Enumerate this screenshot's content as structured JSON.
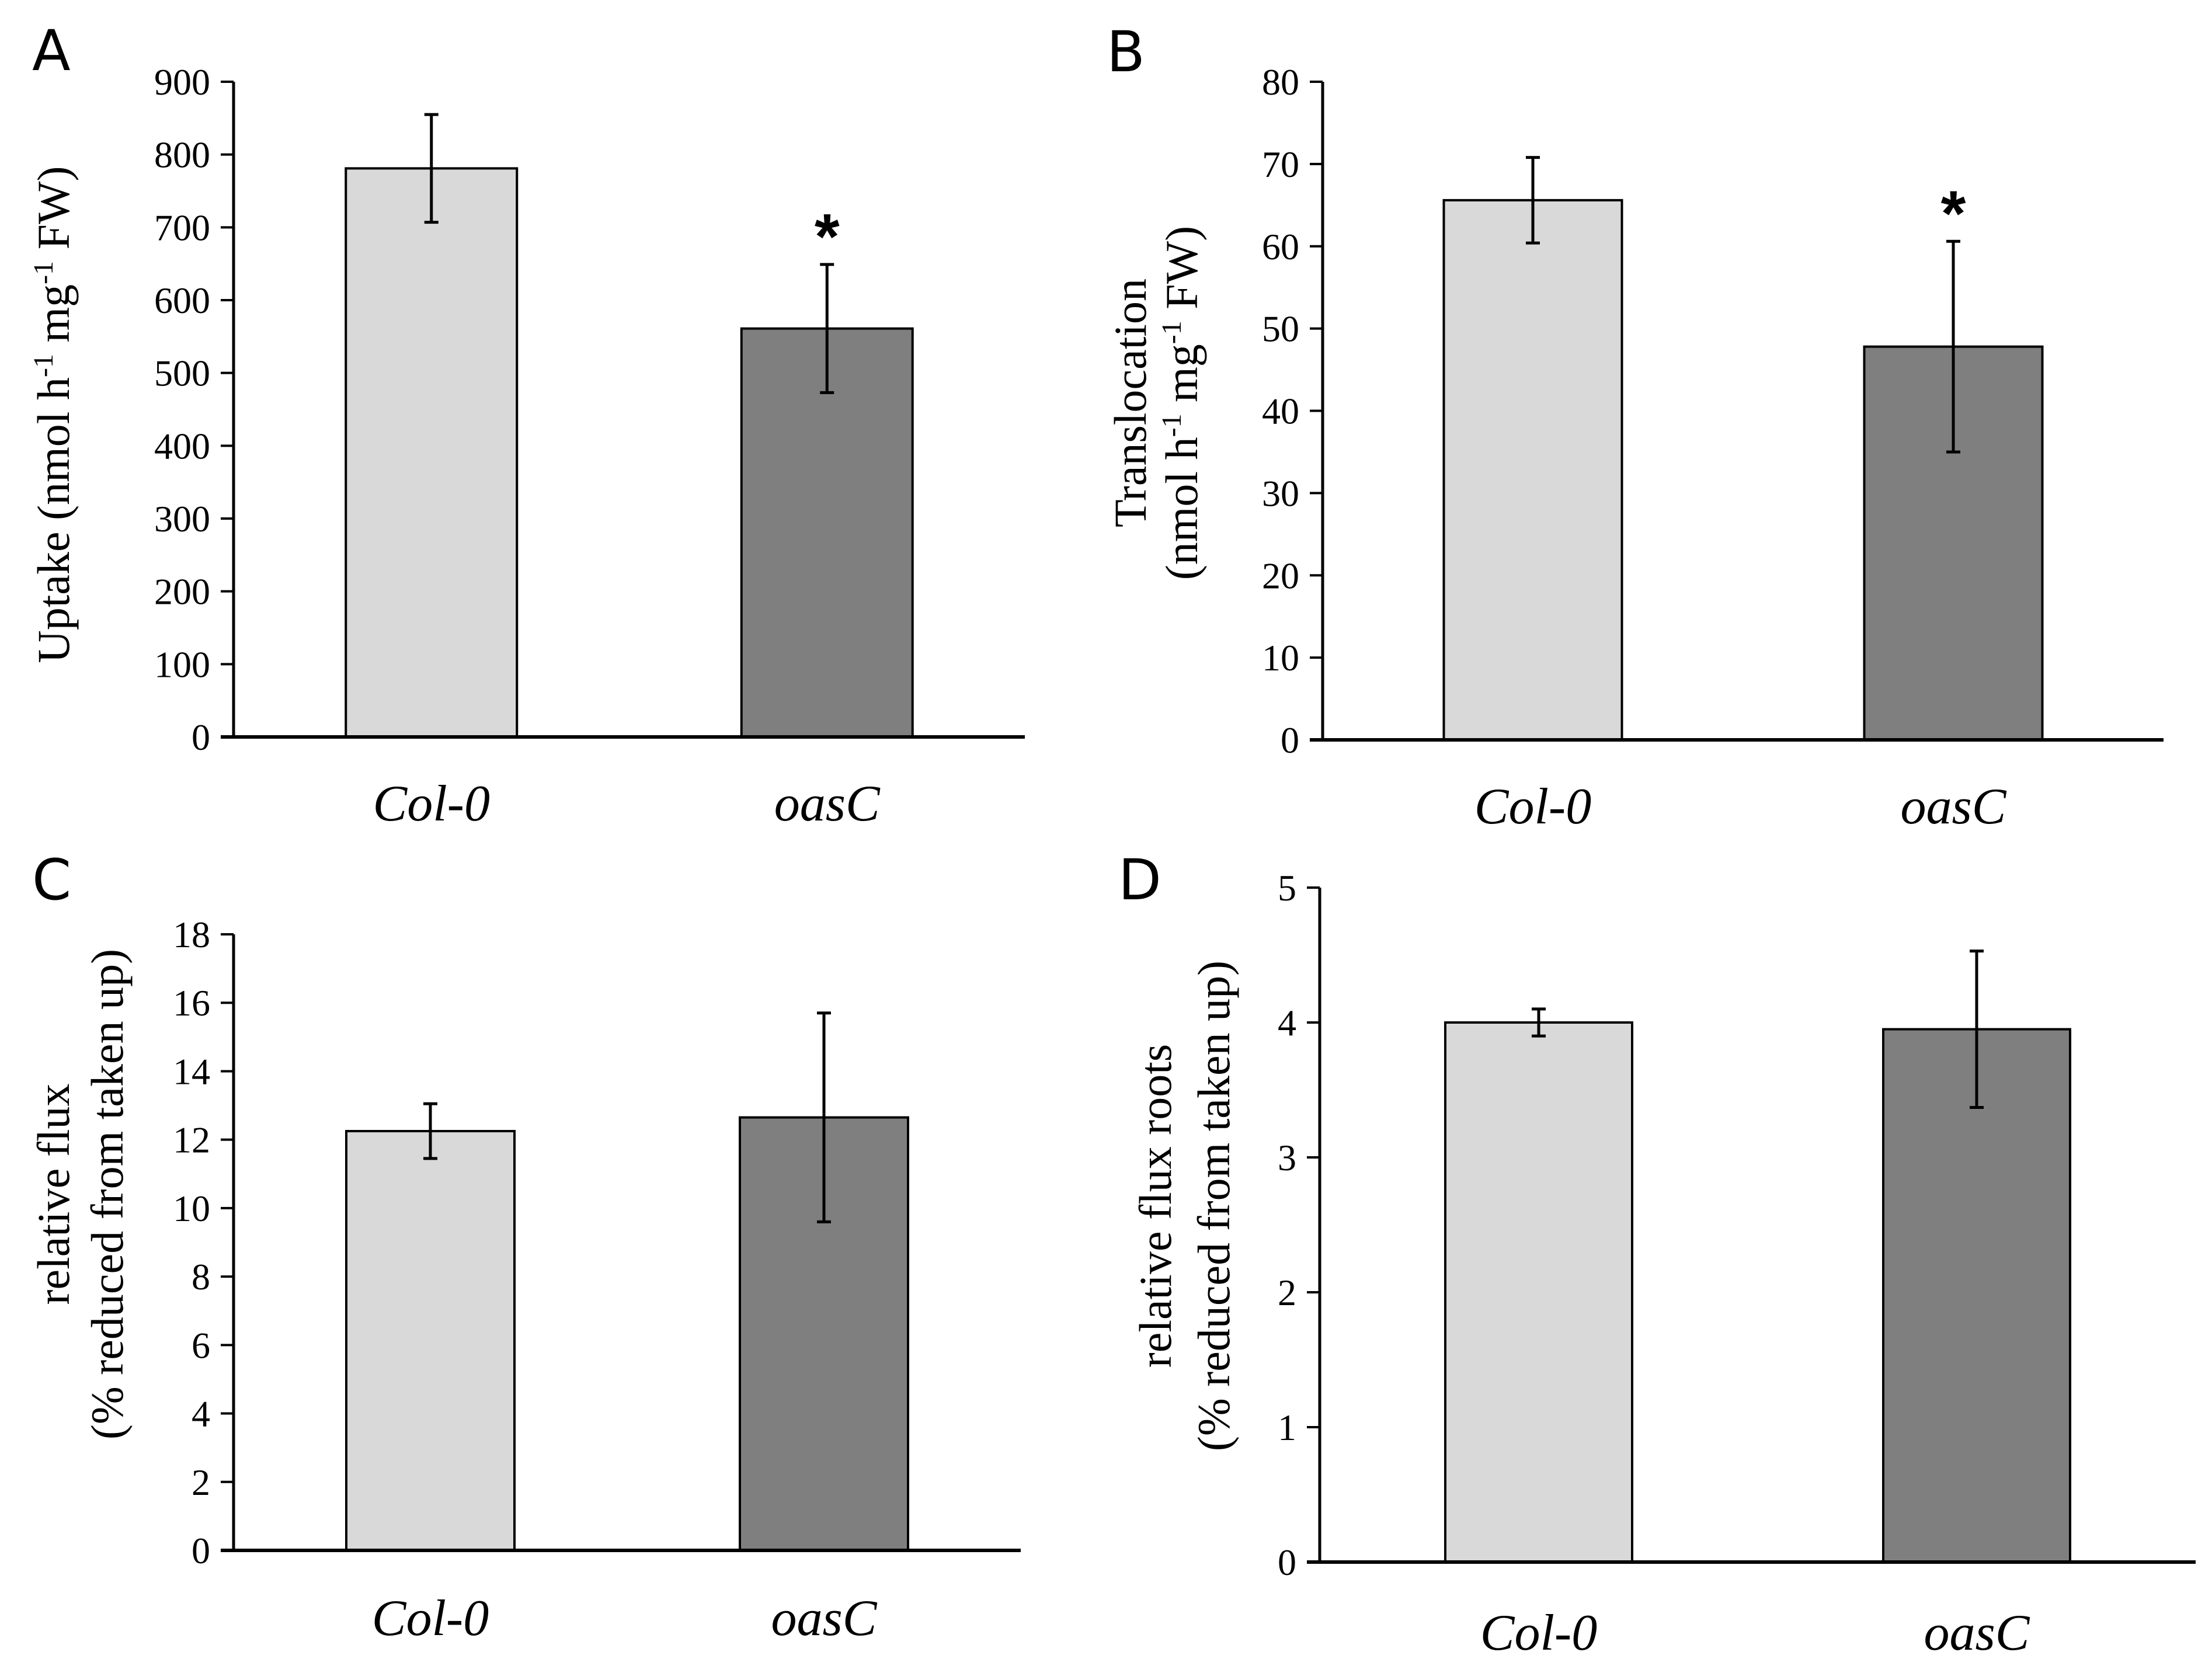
{
  "chart_data": [
    {
      "panel": "A",
      "type": "bar",
      "categories": [
        "Col-0",
        "oasC"
      ],
      "values": [
        781,
        561
      ],
      "errors": [
        74,
        88
      ],
      "colors": [
        "#d9d9d9",
        "#7f7f7f"
      ],
      "annotations": [
        "",
        "*"
      ],
      "ylabel": {
        "main": "Uptake (nmol h",
        "sup1": "-1",
        "mid": " mg",
        "sup2": "-1",
        "end": " FW)"
      },
      "ylim": [
        0,
        900
      ],
      "ticks": [
        0,
        100,
        200,
        300,
        400,
        500,
        600,
        700,
        800,
        900
      ],
      "tick_labels": [
        "0",
        "100",
        "200",
        "300",
        "400",
        "500",
        "600",
        "700",
        "800",
        "900"
      ]
    },
    {
      "panel": "B",
      "type": "bar",
      "categories": [
        "Col-0",
        "oasC"
      ],
      "values": [
        65.6,
        47.8
      ],
      "errors": [
        5.2,
        12.8
      ],
      "colors": [
        "#d9d9d9",
        "#7f7f7f"
      ],
      "annotations": [
        "",
        "*"
      ],
      "ylabel_line1": "Translocation",
      "ylabel": {
        "main": "(nmol h",
        "sup1": "-1",
        "mid": " mg",
        "sup2": "-1",
        "end": "  FW)"
      },
      "ylim": [
        0,
        80
      ],
      "ticks": [
        0,
        10,
        20,
        30,
        40,
        50,
        60,
        70,
        80
      ],
      "tick_labels": [
        "0",
        "10",
        "20",
        "30",
        "40",
        "50",
        "60",
        "70",
        "80"
      ]
    },
    {
      "panel": "C",
      "type": "bar",
      "categories": [
        "Col-0",
        "oasC"
      ],
      "values": [
        12.25,
        12.65
      ],
      "errors": [
        0.8,
        3.05
      ],
      "colors": [
        "#d9d9d9",
        "#7f7f7f"
      ],
      "annotations": [
        "",
        ""
      ],
      "ylabel_line1": "relative flux",
      "ylabel_line2": "(% reduced from taken up)",
      "ylim": [
        0,
        18
      ],
      "ticks": [
        0,
        2,
        4,
        6,
        8,
        10,
        12,
        14,
        16,
        18
      ],
      "tick_labels": [
        "0",
        "2",
        "4",
        "6",
        "8",
        "10",
        "12",
        "14",
        "16",
        "18"
      ]
    },
    {
      "panel": "D",
      "type": "bar",
      "categories": [
        "Col-0",
        "oasC"
      ],
      "values": [
        4.0,
        3.95
      ],
      "errors": [
        0.1,
        0.58
      ],
      "colors": [
        "#d9d9d9",
        "#7f7f7f"
      ],
      "annotations": [
        "",
        ""
      ],
      "ylabel_line1": "relative flux roots",
      "ylabel_line2": "(% reduced from taken up)",
      "ylim": [
        0,
        5
      ],
      "ticks": [
        0,
        1,
        2,
        3,
        4,
        5
      ],
      "tick_labels": [
        "0",
        "1",
        "2",
        "3",
        "4",
        "5"
      ]
    }
  ]
}
